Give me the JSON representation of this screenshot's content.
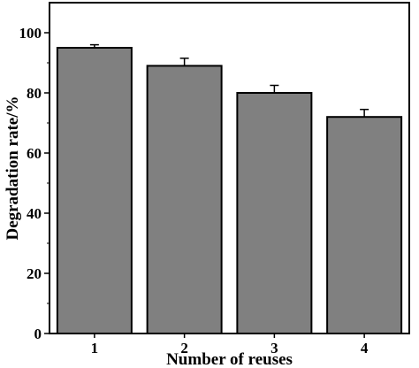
{
  "chart_data": {
    "type": "bar",
    "title": "",
    "xlabel": "Number of reuses",
    "ylabel": "Degradation rate/%",
    "categories": [
      "1",
      "2",
      "3",
      "4"
    ],
    "values": [
      95,
      89,
      80,
      72
    ],
    "errors": [
      1,
      2.5,
      2.5,
      2.5
    ],
    "ylim": [
      0,
      110
    ],
    "yticks": [
      0,
      20,
      40,
      60,
      80,
      100
    ],
    "yticklabels": [
      "0",
      "20",
      "40",
      "60",
      "80",
      "100"
    ],
    "grid": false,
    "legend": "none",
    "bar_color": "#808080",
    "edge_color": "#000000"
  }
}
